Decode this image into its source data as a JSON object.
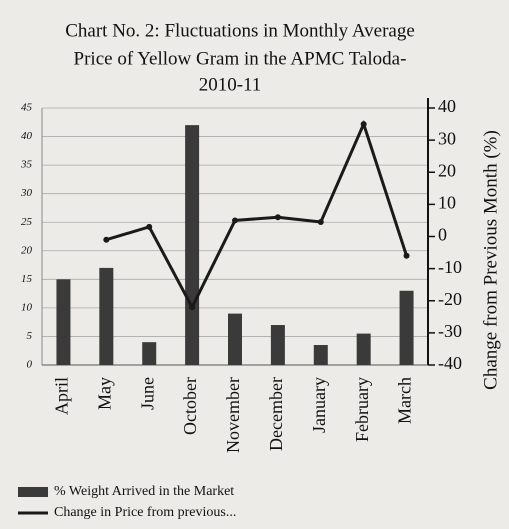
{
  "chart_data": {
    "type": "bar-line",
    "title": [
      "Chart No. 2: Fluctuations in Monthly Average",
      "Price of Yellow Gram in the APMC Taloda-",
      "2010-11"
    ],
    "categories": [
      "April",
      "May",
      "June",
      "October",
      "November",
      "December",
      "January",
      "February",
      "March"
    ],
    "series": [
      {
        "name": "% Weight Arrived in the Market",
        "color": "#3a3a3a",
        "type": "bar",
        "values": [
          15,
          17,
          4,
          42,
          9,
          7,
          3.5,
          5.5,
          13
        ]
      },
      {
        "name": "Change in Price from previous...",
        "color": "#1a1a1a",
        "type": "line",
        "axis": "y2",
        "values": [
          null,
          -1,
          3,
          -22,
          5,
          6,
          4.5,
          35,
          -6
        ]
      }
    ],
    "ylim": [
      0,
      45
    ],
    "yticks": [
      0,
      5,
      10,
      15,
      20,
      25,
      30,
      35,
      40,
      45
    ],
    "y2lim": [
      -40,
      40
    ],
    "y2ticks": [
      -40,
      -30,
      -20,
      -10,
      0,
      10,
      20,
      30,
      40
    ],
    "y2label": "Change from Previous Month (%)",
    "grid": true,
    "legend": "bottom-left"
  }
}
